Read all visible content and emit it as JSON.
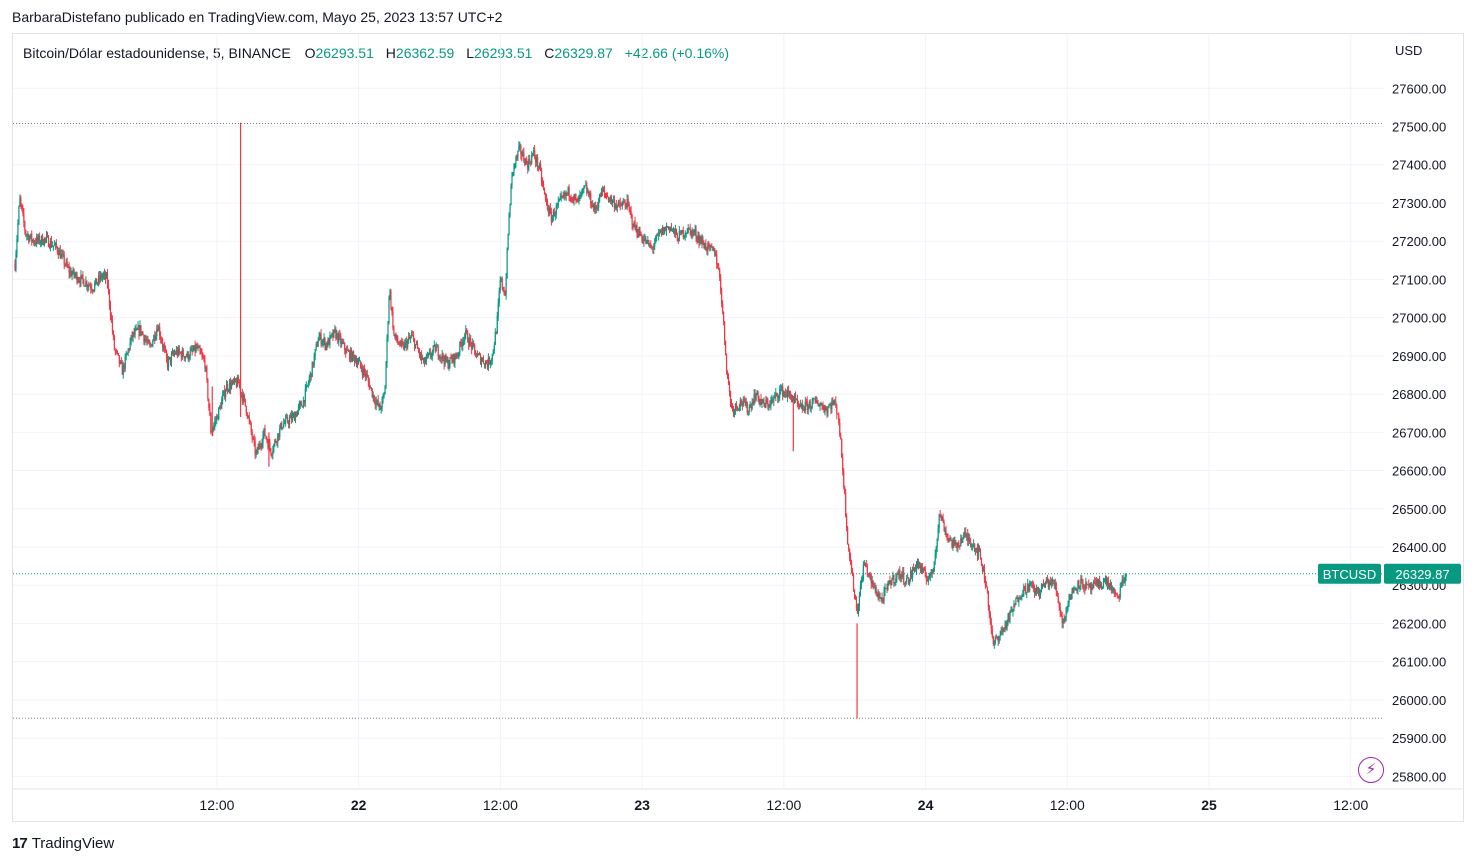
{
  "header": {
    "text": "BarbaraDistefano publicado en TradingView.com, Mayo 25, 2023 13:57 UTC+2"
  },
  "legend": {
    "symbol": "Bitcoin/Dólar estadounidense, 5, BINANCE",
    "o_label": "O",
    "o_value": "26293.51",
    "h_label": "H",
    "h_value": "26362.59",
    "l_label": "L",
    "l_value": "26293.51",
    "c_label": "C",
    "c_value": "26329.87",
    "change": "+42.66 (+0.16%)"
  },
  "price_axis": {
    "unit": "USD"
  },
  "footer": {
    "brand": "TradingView",
    "mark": "17"
  },
  "icons": {
    "footer_logo": "tradingview-logo-icon",
    "floating_button": "lightning-icon"
  },
  "colors": {
    "up": "#089981",
    "down": "#f23645",
    "grid": "#f0f3fa",
    "accent": "#9c27b0",
    "dotted_line": "#787b86"
  },
  "chart_data": {
    "type": "candlestick",
    "symbol_tag": "BTCUSD",
    "last_price": "26329.87",
    "interval": "5",
    "ylim": [
      25780,
      27640
    ],
    "y_ticks": [
      25800,
      25900,
      26000,
      26100,
      26200,
      26300,
      26400,
      26500,
      26600,
      26700,
      26800,
      26900,
      27000,
      27100,
      27200,
      27300,
      27400,
      27500,
      27600
    ],
    "y_tick_labels": [
      "25800.00",
      "25900.00",
      "26000.00",
      "26100.00",
      "26200.00",
      "26300.00",
      "26400.00",
      "26500.00",
      "26600.00",
      "26700.00",
      "26800.00",
      "26900.00",
      "27000.00",
      "27100.00",
      "27200.00",
      "27300.00",
      "27400.00",
      "27500.00",
      "27600.00"
    ],
    "x_ticks": [
      {
        "label": "12:00",
        "t": 12,
        "bold": false
      },
      {
        "label": "22",
        "t": 24,
        "bold": true
      },
      {
        "label": "12:00",
        "t": 36,
        "bold": false
      },
      {
        "label": "23",
        "t": 48,
        "bold": true
      },
      {
        "label": "12:00",
        "t": 60,
        "bold": false
      },
      {
        "label": "24",
        "t": 72,
        "bold": true
      },
      {
        "label": "12:00",
        "t": 84,
        "bold": false
      },
      {
        "label": "25",
        "t": 96,
        "bold": true
      },
      {
        "label": "12:00",
        "t": 108,
        "bold": false
      }
    ],
    "t_range": [
      -5.1,
      109.8
    ],
    "reference_lines": [
      27508,
      26329.87,
      25952
    ],
    "price_path": [
      [
        -5.1,
        27140
      ],
      [
        -4.7,
        27310
      ],
      [
        -4.2,
        27220
      ],
      [
        -3.5,
        27200
      ],
      [
        -2.5,
        27205
      ],
      [
        -1.5,
        27180
      ],
      [
        -0.5,
        27120
      ],
      [
        0.5,
        27100
      ],
      [
        1.5,
        27080
      ],
      [
        2.3,
        27110
      ],
      [
        2.7,
        27100
      ],
      [
        3.3,
        26920
      ],
      [
        4.0,
        26860
      ],
      [
        4.8,
        26950
      ],
      [
        5.5,
        26970
      ],
      [
        6.3,
        26920
      ],
      [
        7.0,
        26980
      ],
      [
        7.8,
        26880
      ],
      [
        8.5,
        26910
      ],
      [
        9.5,
        26900
      ],
      [
        10.3,
        26920
      ],
      [
        11.0,
        26880
      ],
      [
        11.5,
        26700
      ],
      [
        12.0,
        26740
      ],
      [
        12.8,
        26820
      ],
      [
        13.8,
        26830
      ],
      [
        14.5,
        26760
      ],
      [
        15.3,
        26640
      ],
      [
        16.0,
        26700
      ],
      [
        16.6,
        26650
      ],
      [
        17.5,
        26720
      ],
      [
        18.5,
        26740
      ],
      [
        19.3,
        26780
      ],
      [
        20.0,
        26860
      ],
      [
        20.6,
        26950
      ],
      [
        21.3,
        26930
      ],
      [
        22.0,
        26960
      ],
      [
        23.0,
        26910
      ],
      [
        23.8,
        26890
      ],
      [
        24.6,
        26850
      ],
      [
        25.3,
        26790
      ],
      [
        25.8,
        26760
      ],
      [
        26.2,
        26800
      ],
      [
        26.6,
        27080
      ],
      [
        27.0,
        26950
      ],
      [
        27.7,
        26920
      ],
      [
        28.5,
        26950
      ],
      [
        29.5,
        26880
      ],
      [
        30.5,
        26920
      ],
      [
        31.5,
        26880
      ],
      [
        32.3,
        26900
      ],
      [
        33.0,
        26960
      ],
      [
        34.0,
        26900
      ],
      [
        34.9,
        26880
      ],
      [
        35.3,
        26900
      ],
      [
        35.7,
        26980
      ],
      [
        36.0,
        27100
      ],
      [
        36.4,
        27060
      ],
      [
        36.7,
        27250
      ],
      [
        37.0,
        27380
      ],
      [
        37.6,
        27440
      ],
      [
        38.3,
        27400
      ],
      [
        38.8,
        27430
      ],
      [
        39.3,
        27390
      ],
      [
        39.8,
        27310
      ],
      [
        40.3,
        27260
      ],
      [
        41.0,
        27300
      ],
      [
        41.8,
        27330
      ],
      [
        42.5,
        27300
      ],
      [
        43.2,
        27340
      ],
      [
        44.0,
        27280
      ],
      [
        44.6,
        27330
      ],
      [
        45.3,
        27310
      ],
      [
        46.0,
        27290
      ],
      [
        46.7,
        27300
      ],
      [
        47.3,
        27240
      ],
      [
        48.0,
        27210
      ],
      [
        48.8,
        27180
      ],
      [
        49.5,
        27220
      ],
      [
        50.3,
        27240
      ],
      [
        51.0,
        27210
      ],
      [
        51.8,
        27230
      ],
      [
        52.5,
        27220
      ],
      [
        53.0,
        27200
      ],
      [
        53.6,
        27180
      ],
      [
        54.2,
        27170
      ],
      [
        54.6,
        27100
      ],
      [
        54.9,
        26980
      ],
      [
        55.2,
        26850
      ],
      [
        55.6,
        26760
      ],
      [
        56.4,
        26780
      ],
      [
        57.0,
        26760
      ],
      [
        57.6,
        26800
      ],
      [
        58.3,
        26770
      ],
      [
        59.0,
        26780
      ],
      [
        59.7,
        26810
      ],
      [
        60.3,
        26800
      ],
      [
        60.8,
        26790
      ],
      [
        61.3,
        26760
      ],
      [
        62.0,
        26770
      ],
      [
        62.8,
        26780
      ],
      [
        63.6,
        26760
      ],
      [
        64.2,
        26780
      ],
      [
        64.6,
        26750
      ],
      [
        65.0,
        26600
      ],
      [
        65.4,
        26420
      ],
      [
        65.8,
        26320
      ],
      [
        66.2,
        26230
      ],
      [
        66.8,
        26360
      ],
      [
        67.5,
        26300
      ],
      [
        68.3,
        26260
      ],
      [
        69.0,
        26310
      ],
      [
        69.8,
        26330
      ],
      [
        70.5,
        26310
      ],
      [
        71.3,
        26360
      ],
      [
        72.0,
        26320
      ],
      [
        72.6,
        26330
      ],
      [
        73.2,
        26490
      ],
      [
        73.8,
        26430
      ],
      [
        74.5,
        26400
      ],
      [
        75.3,
        26430
      ],
      [
        76.0,
        26410
      ],
      [
        76.6,
        26380
      ],
      [
        77.2,
        26290
      ],
      [
        77.7,
        26140
      ],
      [
        78.0,
        26160
      ],
      [
        78.5,
        26180
      ],
      [
        79.3,
        26230
      ],
      [
        80.0,
        26280
      ],
      [
        80.8,
        26300
      ],
      [
        81.5,
        26280
      ],
      [
        82.3,
        26310
      ],
      [
        83.0,
        26300
      ],
      [
        83.6,
        26200
      ],
      [
        84.2,
        26270
      ],
      [
        85.0,
        26310
      ],
      [
        85.8,
        26290
      ],
      [
        86.5,
        26300
      ],
      [
        87.3,
        26310
      ],
      [
        87.8,
        26290
      ],
      [
        88.2,
        26260
      ],
      [
        88.6,
        26300
      ],
      [
        89.0,
        26329.87
      ]
    ],
    "extreme_wicks": [
      [
        14.0,
        26740,
        27510
      ],
      [
        11.6,
        26690,
        26820
      ],
      [
        66.2,
        25952,
        26200
      ],
      [
        16.4,
        26610,
        26700
      ],
      [
        60.8,
        26650,
        26790
      ]
    ]
  }
}
